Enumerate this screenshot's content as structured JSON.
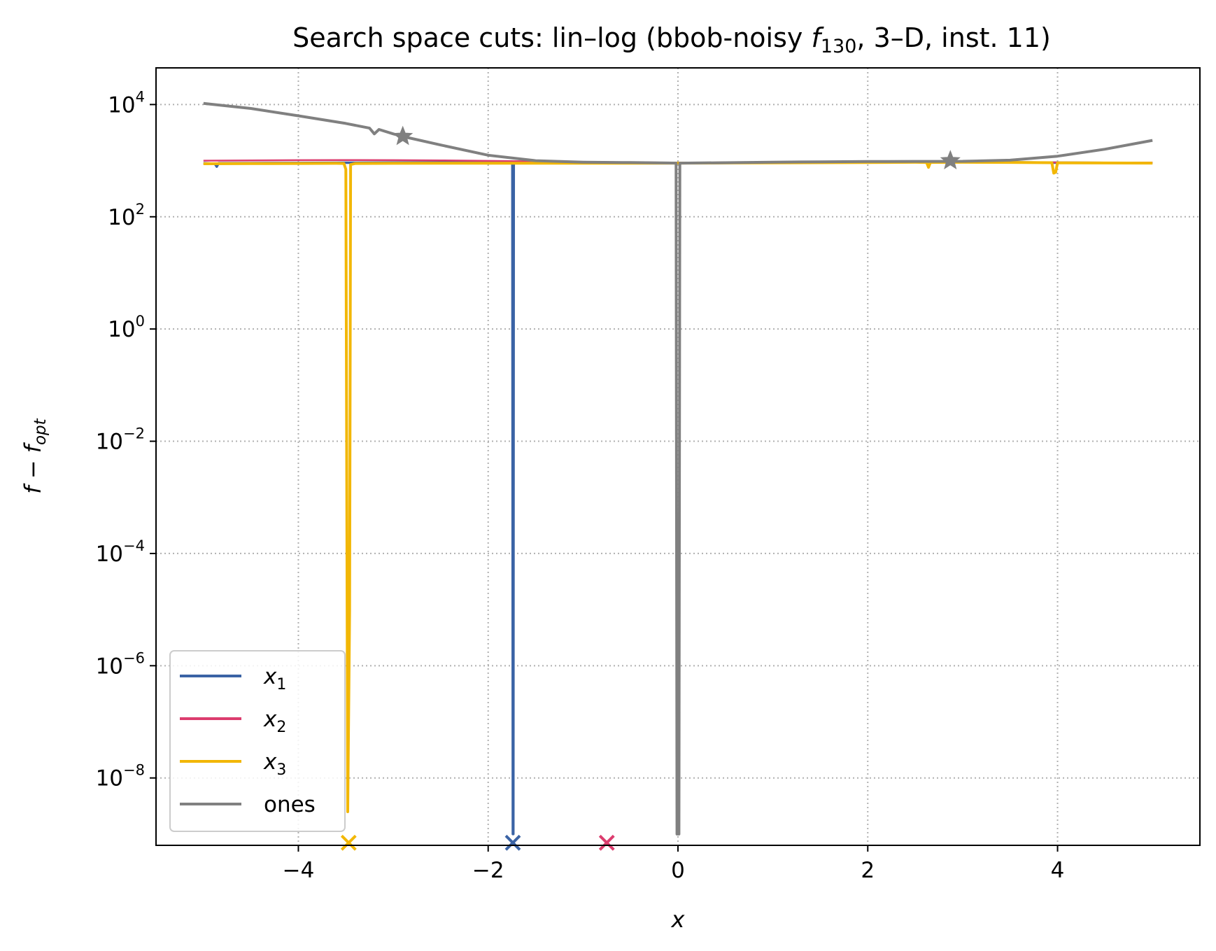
{
  "chart_data": {
    "type": "line",
    "title": {
      "prefix": "Search space cuts: lin–log (bbob-noisy ",
      "func_symbol": "f",
      "func_sub": "130",
      "suffix": ", 3–D, inst. 11)"
    },
    "xlabel": "x",
    "ylabel": {
      "main": "f − f",
      "sub": "opt"
    },
    "x_scale": "linear",
    "y_scale": "log",
    "xlim": [
      -5.5,
      5.5
    ],
    "ylim": [
      6.3e-10,
      45000
    ],
    "x_ticks": [
      {
        "value": -4,
        "label": "−4"
      },
      {
        "value": -2,
        "label": "−2"
      },
      {
        "value": 0,
        "label": "0"
      },
      {
        "value": 2,
        "label": "2"
      },
      {
        "value": 4,
        "label": "4"
      }
    ],
    "y_ticks": [
      {
        "value": 10000.0,
        "base": "10",
        "exp": "4"
      },
      {
        "value": 100.0,
        "base": "10",
        "exp": "2"
      },
      {
        "value": 1.0,
        "base": "10",
        "exp": "0"
      },
      {
        "value": 0.01,
        "base": "10",
        "exp": "−2"
      },
      {
        "value": 0.0001,
        "base": "10",
        "exp": "−4"
      },
      {
        "value": 1e-06,
        "base": "10",
        "exp": "−6"
      },
      {
        "value": 1e-08,
        "base": "10",
        "exp": "−8"
      }
    ],
    "grid": true,
    "legend_position": "lower-left",
    "series": [
      {
        "name": "x",
        "name_sub": "1",
        "color": "#3a63a5",
        "width": 3.5,
        "points": [
          [
            -5,
            900
          ],
          [
            -4.88,
            880
          ],
          [
            -4.86,
            780
          ],
          [
            -4.84,
            900
          ],
          [
            -4.5,
            905
          ],
          [
            -4,
            910
          ],
          [
            -3.5,
            920
          ],
          [
            -3.0,
            925
          ],
          [
            -2.5,
            925
          ],
          [
            -2.0,
            925
          ],
          [
            -1.76,
            920
          ],
          [
            -1.745,
            900
          ],
          [
            -1.74,
            1e-09
          ],
          [
            -1.735,
            1e-09
          ],
          [
            -1.73,
            900
          ],
          [
            -1.72,
            920
          ],
          [
            -1.5,
            920
          ],
          [
            -1.0,
            915
          ],
          [
            -0.5,
            910
          ],
          [
            0,
            905
          ],
          [
            0.5,
            910
          ],
          [
            1,
            930
          ],
          [
            1.5,
            945
          ],
          [
            2.0,
            960
          ],
          [
            2.5,
            960
          ],
          [
            3,
            950
          ],
          [
            3.5,
            935
          ],
          [
            4,
            920
          ],
          [
            4.5,
            915
          ],
          [
            5,
            910
          ]
        ]
      },
      {
        "name": "x",
        "name_sub": "2",
        "color": "#dc3c6e",
        "width": 2.5,
        "points": [
          [
            -5,
            1000
          ],
          [
            -4.5,
            1010
          ],
          [
            -4,
            1020
          ],
          [
            -3.5,
            1025
          ],
          [
            -3,
            1020
          ],
          [
            -2.5,
            1010
          ],
          [
            -2,
            990
          ],
          [
            -1.5,
            970
          ],
          [
            -1,
            950
          ],
          [
            -0.5,
            935
          ],
          [
            0,
            920
          ],
          [
            0.5,
            930
          ],
          [
            1,
            945
          ],
          [
            1.5,
            960
          ],
          [
            2,
            960
          ],
          [
            2.5,
            955
          ],
          [
            3,
            945
          ],
          [
            3.5,
            935
          ],
          [
            4,
            930
          ],
          [
            4.5,
            928
          ],
          [
            5,
            925
          ]
        ]
      },
      {
        "name": "x",
        "name_sub": "3",
        "color": "#f2b705",
        "width": 4,
        "points": [
          [
            -5,
            880
          ],
          [
            -4.5,
            885
          ],
          [
            -4,
            890
          ],
          [
            -3.6,
            895
          ],
          [
            -3.52,
            890
          ],
          [
            -3.5,
            700
          ],
          [
            -3.48,
            2.5e-09
          ],
          [
            -3.46,
            1e-05
          ],
          [
            -3.45,
            850
          ],
          [
            -3.4,
            890
          ],
          [
            -3,
            895
          ],
          [
            -2.5,
            900
          ],
          [
            -2,
            900
          ],
          [
            -1.5,
            900
          ],
          [
            -1,
            900
          ],
          [
            -0.5,
            900
          ],
          [
            0,
            905
          ],
          [
            0.5,
            910
          ],
          [
            1,
            915
          ],
          [
            1.5,
            920
          ],
          [
            2,
            925
          ],
          [
            2.5,
            935
          ],
          [
            2.62,
            930
          ],
          [
            2.64,
            760
          ],
          [
            2.66,
            930
          ],
          [
            3,
            935
          ],
          [
            3.5,
            930
          ],
          [
            3.94,
            920
          ],
          [
            3.96,
            600
          ],
          [
            3.98,
            620
          ],
          [
            4.0,
            915
          ],
          [
            4.5,
            910
          ],
          [
            5,
            905
          ]
        ]
      },
      {
        "name": "ones",
        "name_sub": "",
        "color": "#808080",
        "width": 4,
        "points": [
          [
            -5,
            10500
          ],
          [
            -4.5,
            8500
          ],
          [
            -4,
            6300
          ],
          [
            -3.5,
            4600
          ],
          [
            -3.25,
            3800
          ],
          [
            -3.2,
            3000
          ],
          [
            -3.15,
            3600
          ],
          [
            -3,
            3000
          ],
          [
            -2.9,
            2700
          ],
          [
            -2.5,
            1900
          ],
          [
            -2,
            1250
          ],
          [
            -1.5,
            1000
          ],
          [
            -1,
            940
          ],
          [
            -0.5,
            925
          ],
          [
            -0.1,
            910
          ],
          [
            -0.02,
            905
          ],
          [
            -0.01,
            1e-09
          ],
          [
            0.01,
            1e-09
          ],
          [
            0.02,
            905
          ],
          [
            0.5,
            920
          ],
          [
            1,
            940
          ],
          [
            1.5,
            955
          ],
          [
            2,
            965
          ],
          [
            2.5,
            970
          ],
          [
            3,
            975
          ],
          [
            3.5,
            1020
          ],
          [
            4,
            1200
          ],
          [
            4.5,
            1600
          ],
          [
            5,
            2300
          ]
        ]
      }
    ],
    "markers": [
      {
        "x": -3.47,
        "y": 7e-10,
        "shape": "x",
        "color": "#f2b705"
      },
      {
        "x": -1.74,
        "y": 7e-10,
        "shape": "x",
        "color": "#3a63a5"
      },
      {
        "x": -0.75,
        "y": 7e-10,
        "shape": "x",
        "color": "#dc3c6e"
      },
      {
        "x": -2.9,
        "y": 2700,
        "shape": "star",
        "color": "#808080"
      },
      {
        "x": 2.87,
        "y": 1000,
        "shape": "star",
        "color": "#808080"
      }
    ]
  }
}
